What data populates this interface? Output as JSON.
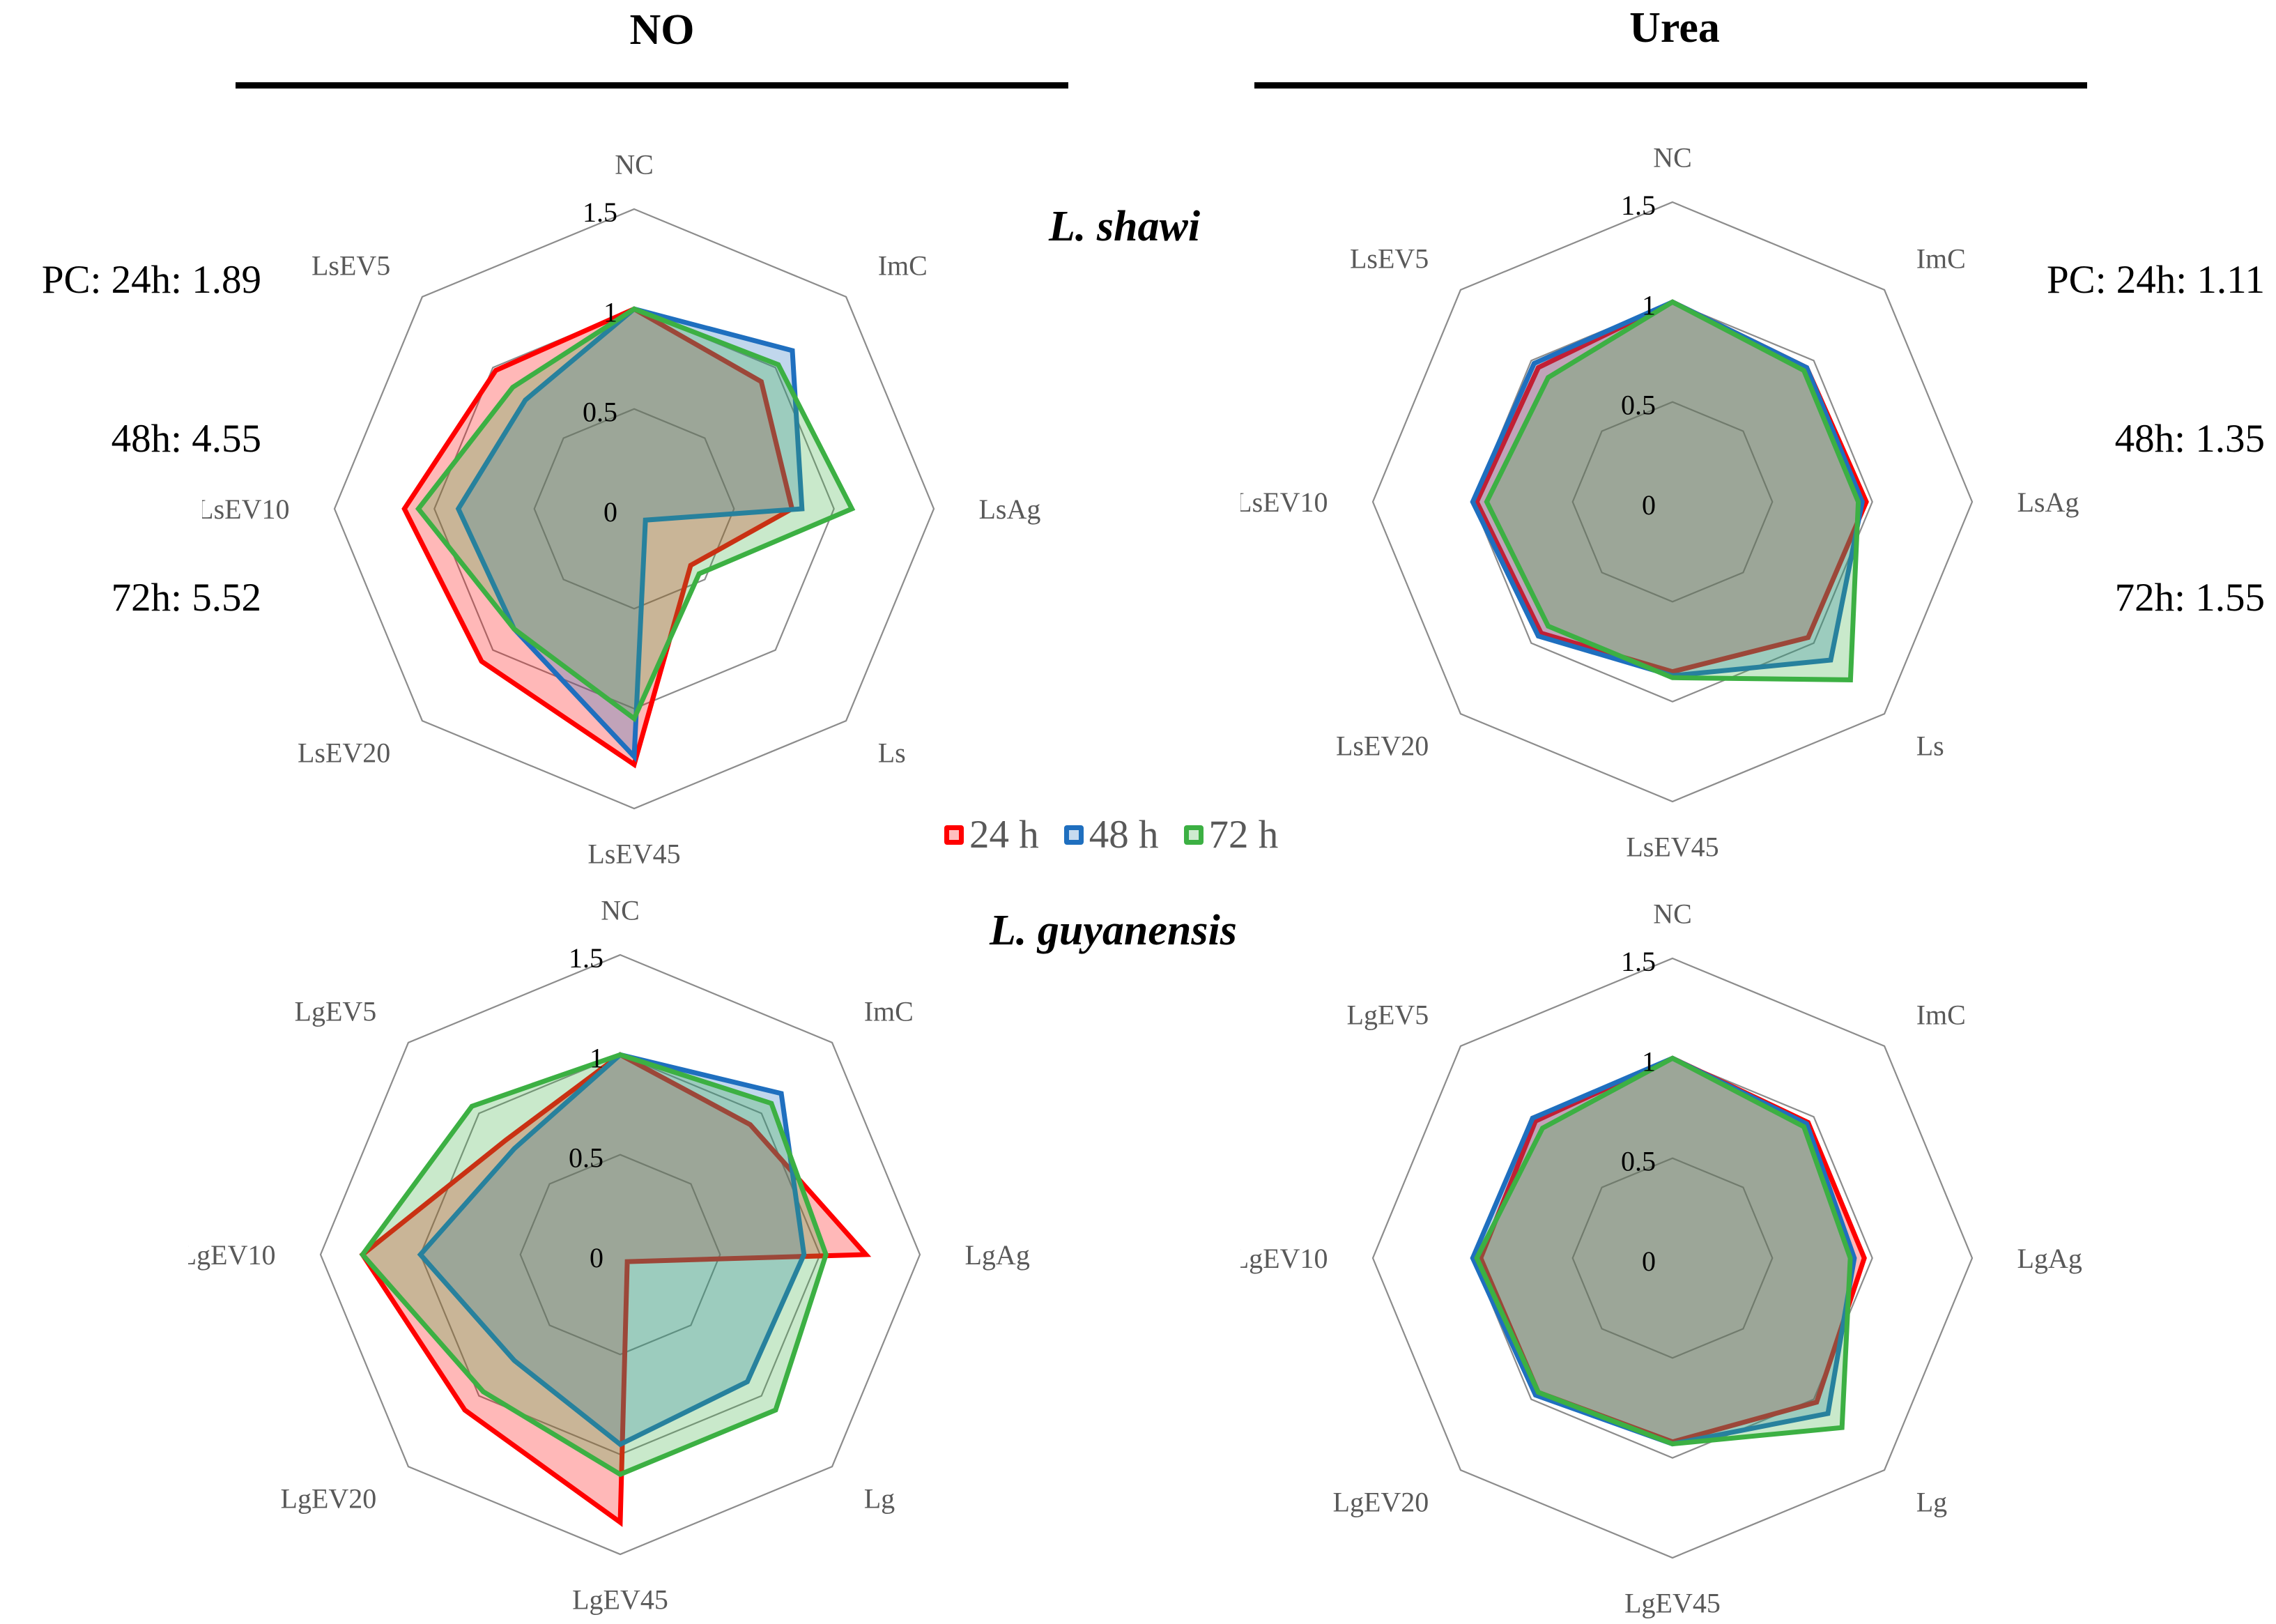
{
  "headers": {
    "left": "NO",
    "right": "Urea"
  },
  "species": {
    "top": "L. shawi",
    "bottom": "L. guyanensis"
  },
  "pc_notes": {
    "left": {
      "l1": "PC: 24h: 1.89",
      "l2": "48h: 4.55",
      "l3": "72h: 5.52"
    },
    "right": {
      "l1": "PC: 24h: 1.11",
      "l2": "48h: 1.35",
      "l3": "72h: 1.55"
    }
  },
  "legend": [
    {
      "label": "24 h",
      "color": "#ff0000"
    },
    {
      "label": "48 h",
      "color": "#1f6fbf"
    },
    {
      "label": "72 h",
      "color": "#3cb043"
    }
  ],
  "colors": {
    "h24": "#ff0000",
    "h48": "#1f6fbf",
    "h72": "#3cb043",
    "grid": "#8c8c8c"
  },
  "chart_data": [
    {
      "type": "radar",
      "title": "NO — L. shawi",
      "axes": [
        "NC",
        "ImC",
        "LsAg",
        "Ls",
        "LsEV45",
        "LsEV20",
        "LsEV10",
        "LsEV5"
      ],
      "rmax": 1.5,
      "tick_labels": [
        "0",
        "0.5",
        "1",
        "1.5"
      ],
      "series": [
        {
          "name": "24 h",
          "values": [
            1.0,
            0.9,
            0.79,
            0.4,
            1.28,
            1.08,
            1.15,
            0.98
          ]
        },
        {
          "name": "48 h",
          "values": [
            1.0,
            1.12,
            0.84,
            0.08,
            1.24,
            0.85,
            0.88,
            0.77
          ]
        },
        {
          "name": "72 h",
          "values": [
            1.0,
            1.02,
            1.09,
            0.46,
            1.05,
            0.85,
            1.08,
            0.86
          ]
        }
      ]
    },
    {
      "type": "radar",
      "title": "Urea — L. shawi",
      "axes": [
        "NC",
        "ImC",
        "LsAg",
        "Ls",
        "LsEV45",
        "LsEV20",
        "LsEV10",
        "LsEV5"
      ],
      "rmax": 1.5,
      "tick_labels": [
        "0",
        "0.5",
        "1",
        "1.5"
      ],
      "series": [
        {
          "name": "24 h",
          "values": [
            1.0,
            0.95,
            0.97,
            0.96,
            0.85,
            0.93,
            0.98,
            0.95
          ]
        },
        {
          "name": "48 h",
          "values": [
            1.0,
            0.95,
            0.95,
            1.12,
            0.87,
            0.95,
            1.0,
            0.98
          ]
        },
        {
          "name": "72 h",
          "values": [
            1.0,
            0.93,
            0.93,
            1.26,
            0.88,
            0.88,
            0.93,
            0.88
          ]
        }
      ]
    },
    {
      "type": "radar",
      "title": "NO — L. guyanensis",
      "axes": [
        "NC",
        "ImC",
        "LgAg",
        "Lg",
        "LgEV45",
        "LgEV20",
        "LgEV10",
        "LgEV5"
      ],
      "rmax": 1.5,
      "tick_labels": [
        "0",
        "0.5",
        "1",
        "1.5"
      ],
      "series": [
        {
          "name": "24 h",
          "values": [
            1.0,
            0.92,
            1.23,
            0.05,
            1.34,
            1.1,
            1.29,
            0.81
          ]
        },
        {
          "name": "48 h",
          "values": [
            1.0,
            1.14,
            0.92,
            0.9,
            0.95,
            0.75,
            1.0,
            0.75
          ]
        },
        {
          "name": "72 h",
          "values": [
            1.0,
            1.07,
            1.03,
            1.1,
            1.1,
            0.97,
            1.29,
            1.05
          ]
        }
      ]
    },
    {
      "type": "radar",
      "title": "Urea — L. guyanensis",
      "axes": [
        "NC",
        "ImC",
        "LgAg",
        "Lg",
        "LgEV45",
        "LgEV20",
        "LgEV10",
        "LgEV5"
      ],
      "rmax": 1.5,
      "tick_labels": [
        "0",
        "0.5",
        "1",
        "1.5"
      ],
      "series": [
        {
          "name": "24 h",
          "values": [
            1.0,
            0.96,
            0.96,
            1.02,
            0.92,
            0.95,
            0.96,
            0.97
          ]
        },
        {
          "name": "48 h",
          "values": [
            1.0,
            0.95,
            0.91,
            1.1,
            0.93,
            0.97,
            1.0,
            0.99
          ]
        },
        {
          "name": "72 h",
          "values": [
            1.0,
            0.93,
            0.89,
            1.2,
            0.93,
            0.95,
            0.98,
            0.92
          ]
        }
      ]
    }
  ]
}
